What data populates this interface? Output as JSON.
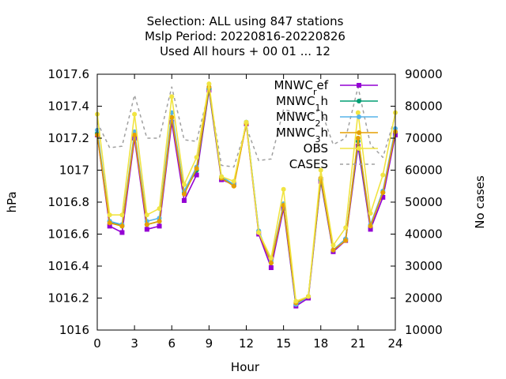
{
  "chart_data": {
    "type": "line",
    "title_lines": [
      "Selection: ALL using   847 stations",
      "Mslp    Period: 20220816-20220826",
      "Used  All hours  + 00 01 ... 12"
    ],
    "xlabel": "Hour",
    "ylabel": "hPa",
    "y2label": "No cases",
    "xlim": [
      0,
      24
    ],
    "ylim": [
      1016.0,
      1017.6
    ],
    "y2lim": [
      10000,
      90000
    ],
    "x_ticks": [
      0,
      3,
      6,
      9,
      12,
      15,
      18,
      21,
      24
    ],
    "y_ticks": [
      1016.0,
      1016.2,
      1016.4,
      1016.6,
      1016.8,
      1017.0,
      1017.2,
      1017.4,
      1017.6
    ],
    "y_tick_labels": [
      "1016",
      "1016.2",
      "1016.4",
      "1016.6",
      "1016.8",
      "1017",
      "1017.2",
      "1017.4",
      "1017.6"
    ],
    "y2_ticks": [
      10000,
      20000,
      30000,
      40000,
      50000,
      60000,
      70000,
      80000,
      90000
    ],
    "y2_tick_labels": [
      "10000",
      "20000",
      "30000",
      "40000",
      "50000",
      "60000",
      "70000",
      "80000",
      "90000"
    ],
    "grid": false,
    "legend_position": "top-right",
    "x": [
      0,
      1,
      2,
      3,
      4,
      5,
      6,
      7,
      8,
      9,
      10,
      11,
      12,
      13,
      14,
      15,
      16,
      17,
      18,
      19,
      20,
      21,
      22,
      23,
      24
    ],
    "series": [
      {
        "name": "MNWC_ref",
        "label_main": "MNWC",
        "label_sub": "r",
        "label_rest": "ef",
        "color": "#9400d3",
        "marker": "square",
        "axis": "y",
        "values": [
          1017.22,
          1016.65,
          1016.61,
          1017.2,
          1016.63,
          1016.65,
          1017.3,
          1016.81,
          1016.97,
          1017.5,
          1016.94,
          1016.91,
          1017.29,
          1016.6,
          1016.39,
          1016.76,
          1016.15,
          1016.2,
          1016.93,
          1016.49,
          1016.56,
          1017.15,
          1016.63,
          1016.83,
          1017.22
        ]
      },
      {
        "name": "MNWC_1h",
        "label_main": "MNWC",
        "label_sub": "1",
        "label_rest": "h",
        "color": "#009e73",
        "marker": "circle",
        "axis": "y",
        "values": [
          1017.23,
          1016.68,
          1016.65,
          1017.23,
          1016.66,
          1016.68,
          1017.33,
          1016.86,
          1017.0,
          1017.51,
          1016.95,
          1016.91,
          1017.3,
          1016.62,
          1016.42,
          1016.78,
          1016.16,
          1016.21,
          1016.94,
          1016.5,
          1016.57,
          1017.18,
          1016.65,
          1016.86,
          1017.24
        ]
      },
      {
        "name": "MNWC_2h",
        "label_main": "MNWC",
        "label_sub": "2",
        "label_rest": "h",
        "color": "#56b4e9",
        "marker": "circle",
        "axis": "y",
        "values": [
          1017.25,
          1016.68,
          1016.66,
          1017.24,
          1016.68,
          1016.7,
          1017.36,
          1016.87,
          1017.02,
          1017.52,
          1016.96,
          1016.91,
          1017.3,
          1016.62,
          1016.43,
          1016.79,
          1016.16,
          1016.21,
          1016.95,
          1016.5,
          1016.57,
          1017.2,
          1016.66,
          1016.87,
          1017.26
        ]
      },
      {
        "name": "MNWC_3h",
        "label_main": "MNWC",
        "label_sub": "3",
        "label_rest": "h",
        "color": "#e69f00",
        "marker": "circle",
        "axis": "y",
        "values": [
          1017.22,
          1016.67,
          1016.65,
          1017.22,
          1016.66,
          1016.68,
          1017.33,
          1016.85,
          1017.01,
          1017.52,
          1016.95,
          1016.9,
          1017.29,
          1016.61,
          1016.42,
          1016.78,
          1016.17,
          1016.21,
          1016.95,
          1016.5,
          1016.56,
          1017.2,
          1016.65,
          1016.86,
          1017.24
        ]
      },
      {
        "name": "OBS",
        "label_main": "OBS",
        "label_sub": "",
        "label_rest": "",
        "color": "#f0e442",
        "marker": "circle",
        "axis": "y",
        "values": [
          1017.35,
          1016.72,
          1016.72,
          1017.35,
          1016.72,
          1016.76,
          1017.46,
          1016.91,
          1017.08,
          1017.54,
          1016.96,
          1016.93,
          1017.3,
          1016.61,
          1016.45,
          1016.88,
          1016.18,
          1016.21,
          1017.0,
          1016.53,
          1016.64,
          1017.36,
          1016.73,
          1016.97,
          1017.36
        ]
      },
      {
        "name": "CASES",
        "label_main": "CASES",
        "label_sub": "",
        "label_rest": "",
        "color": "#a0a0a0",
        "marker": "none",
        "dashed": true,
        "axis": "y2",
        "values": [
          75000,
          67000,
          67500,
          83500,
          70000,
          70000,
          86000,
          69500,
          69000,
          85000,
          61500,
          61000,
          73500,
          63000,
          63500,
          79000,
          78000,
          77000,
          79000,
          68000,
          70000,
          86000,
          68000,
          64000,
          77000
        ]
      }
    ]
  }
}
